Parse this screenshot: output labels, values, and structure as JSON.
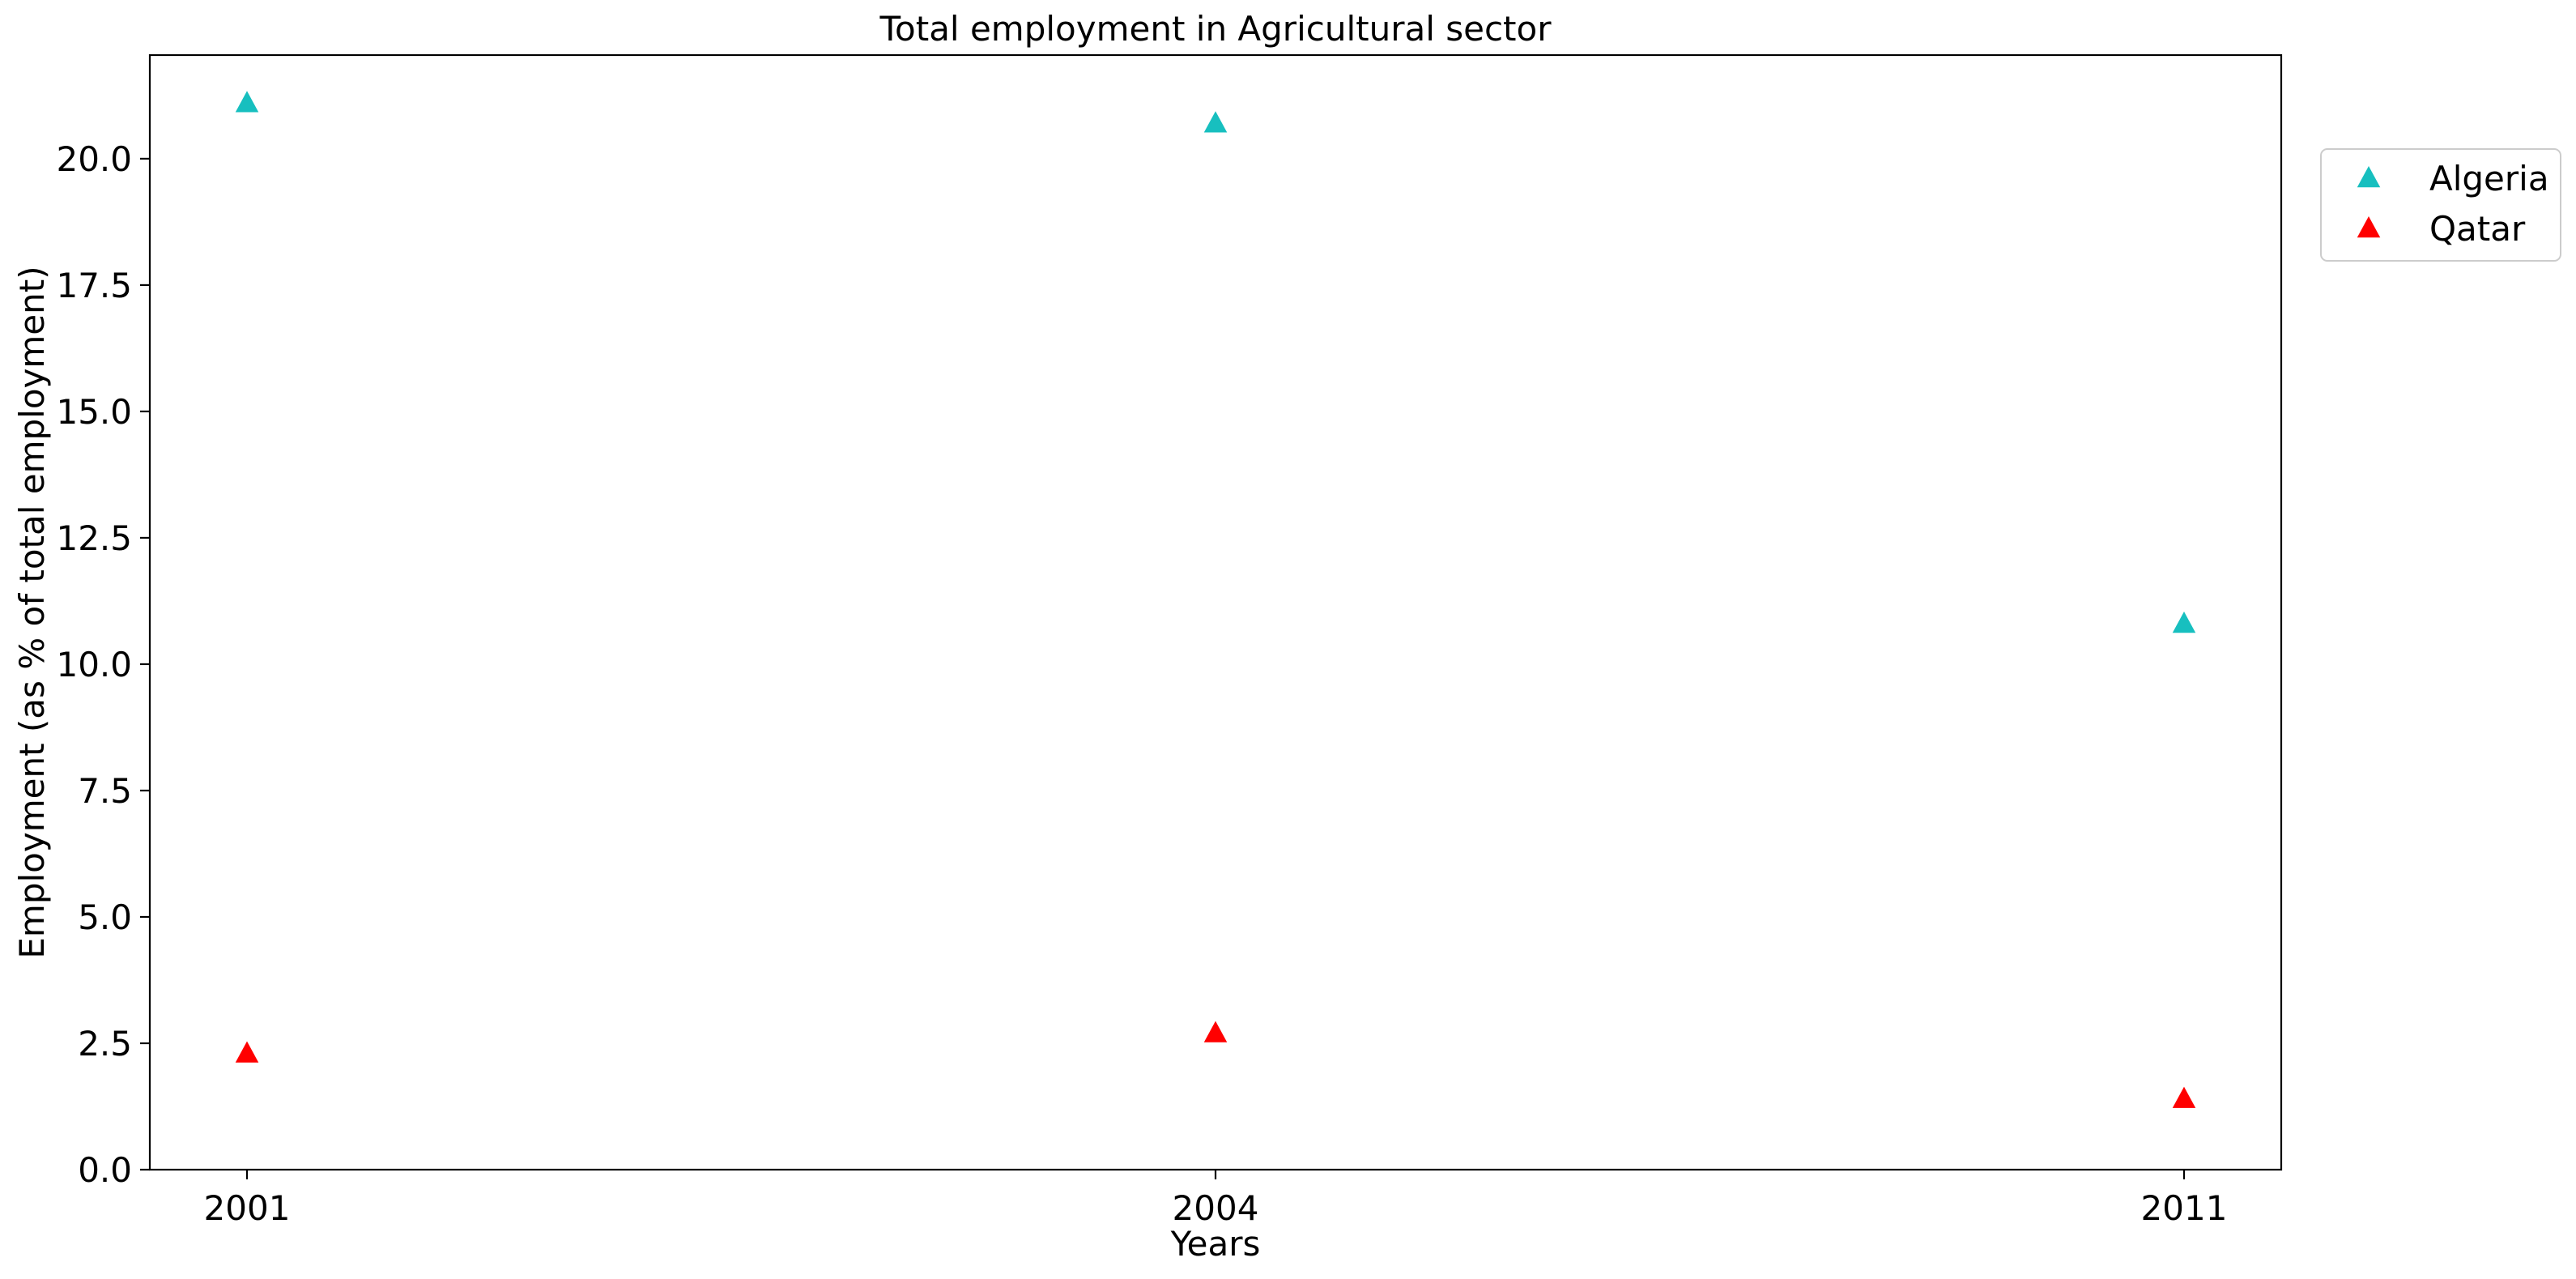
{
  "chart_data": {
    "type": "scatter",
    "title": "Total employment in Agricultural sector",
    "xlabel": "Years",
    "ylabel": "Employment (as % of total employment)",
    "categories": [
      "2001",
      "2004",
      "2011"
    ],
    "ylim": [
      0,
      22.05
    ],
    "yticks": [
      "0.0",
      "2.5",
      "5.0",
      "7.5",
      "10.0",
      "12.5",
      "15.0",
      "17.5",
      "20.0"
    ],
    "grid": false,
    "legend_position": "outside top-right",
    "marker": "triangle-up",
    "series": [
      {
        "name": "Algeria",
        "color": "#17bfbf",
        "values": [
          21.1,
          20.7,
          10.8
        ]
      },
      {
        "name": "Qatar",
        "color": "#ff0000",
        "values": [
          2.3,
          2.7,
          1.4
        ]
      }
    ]
  }
}
